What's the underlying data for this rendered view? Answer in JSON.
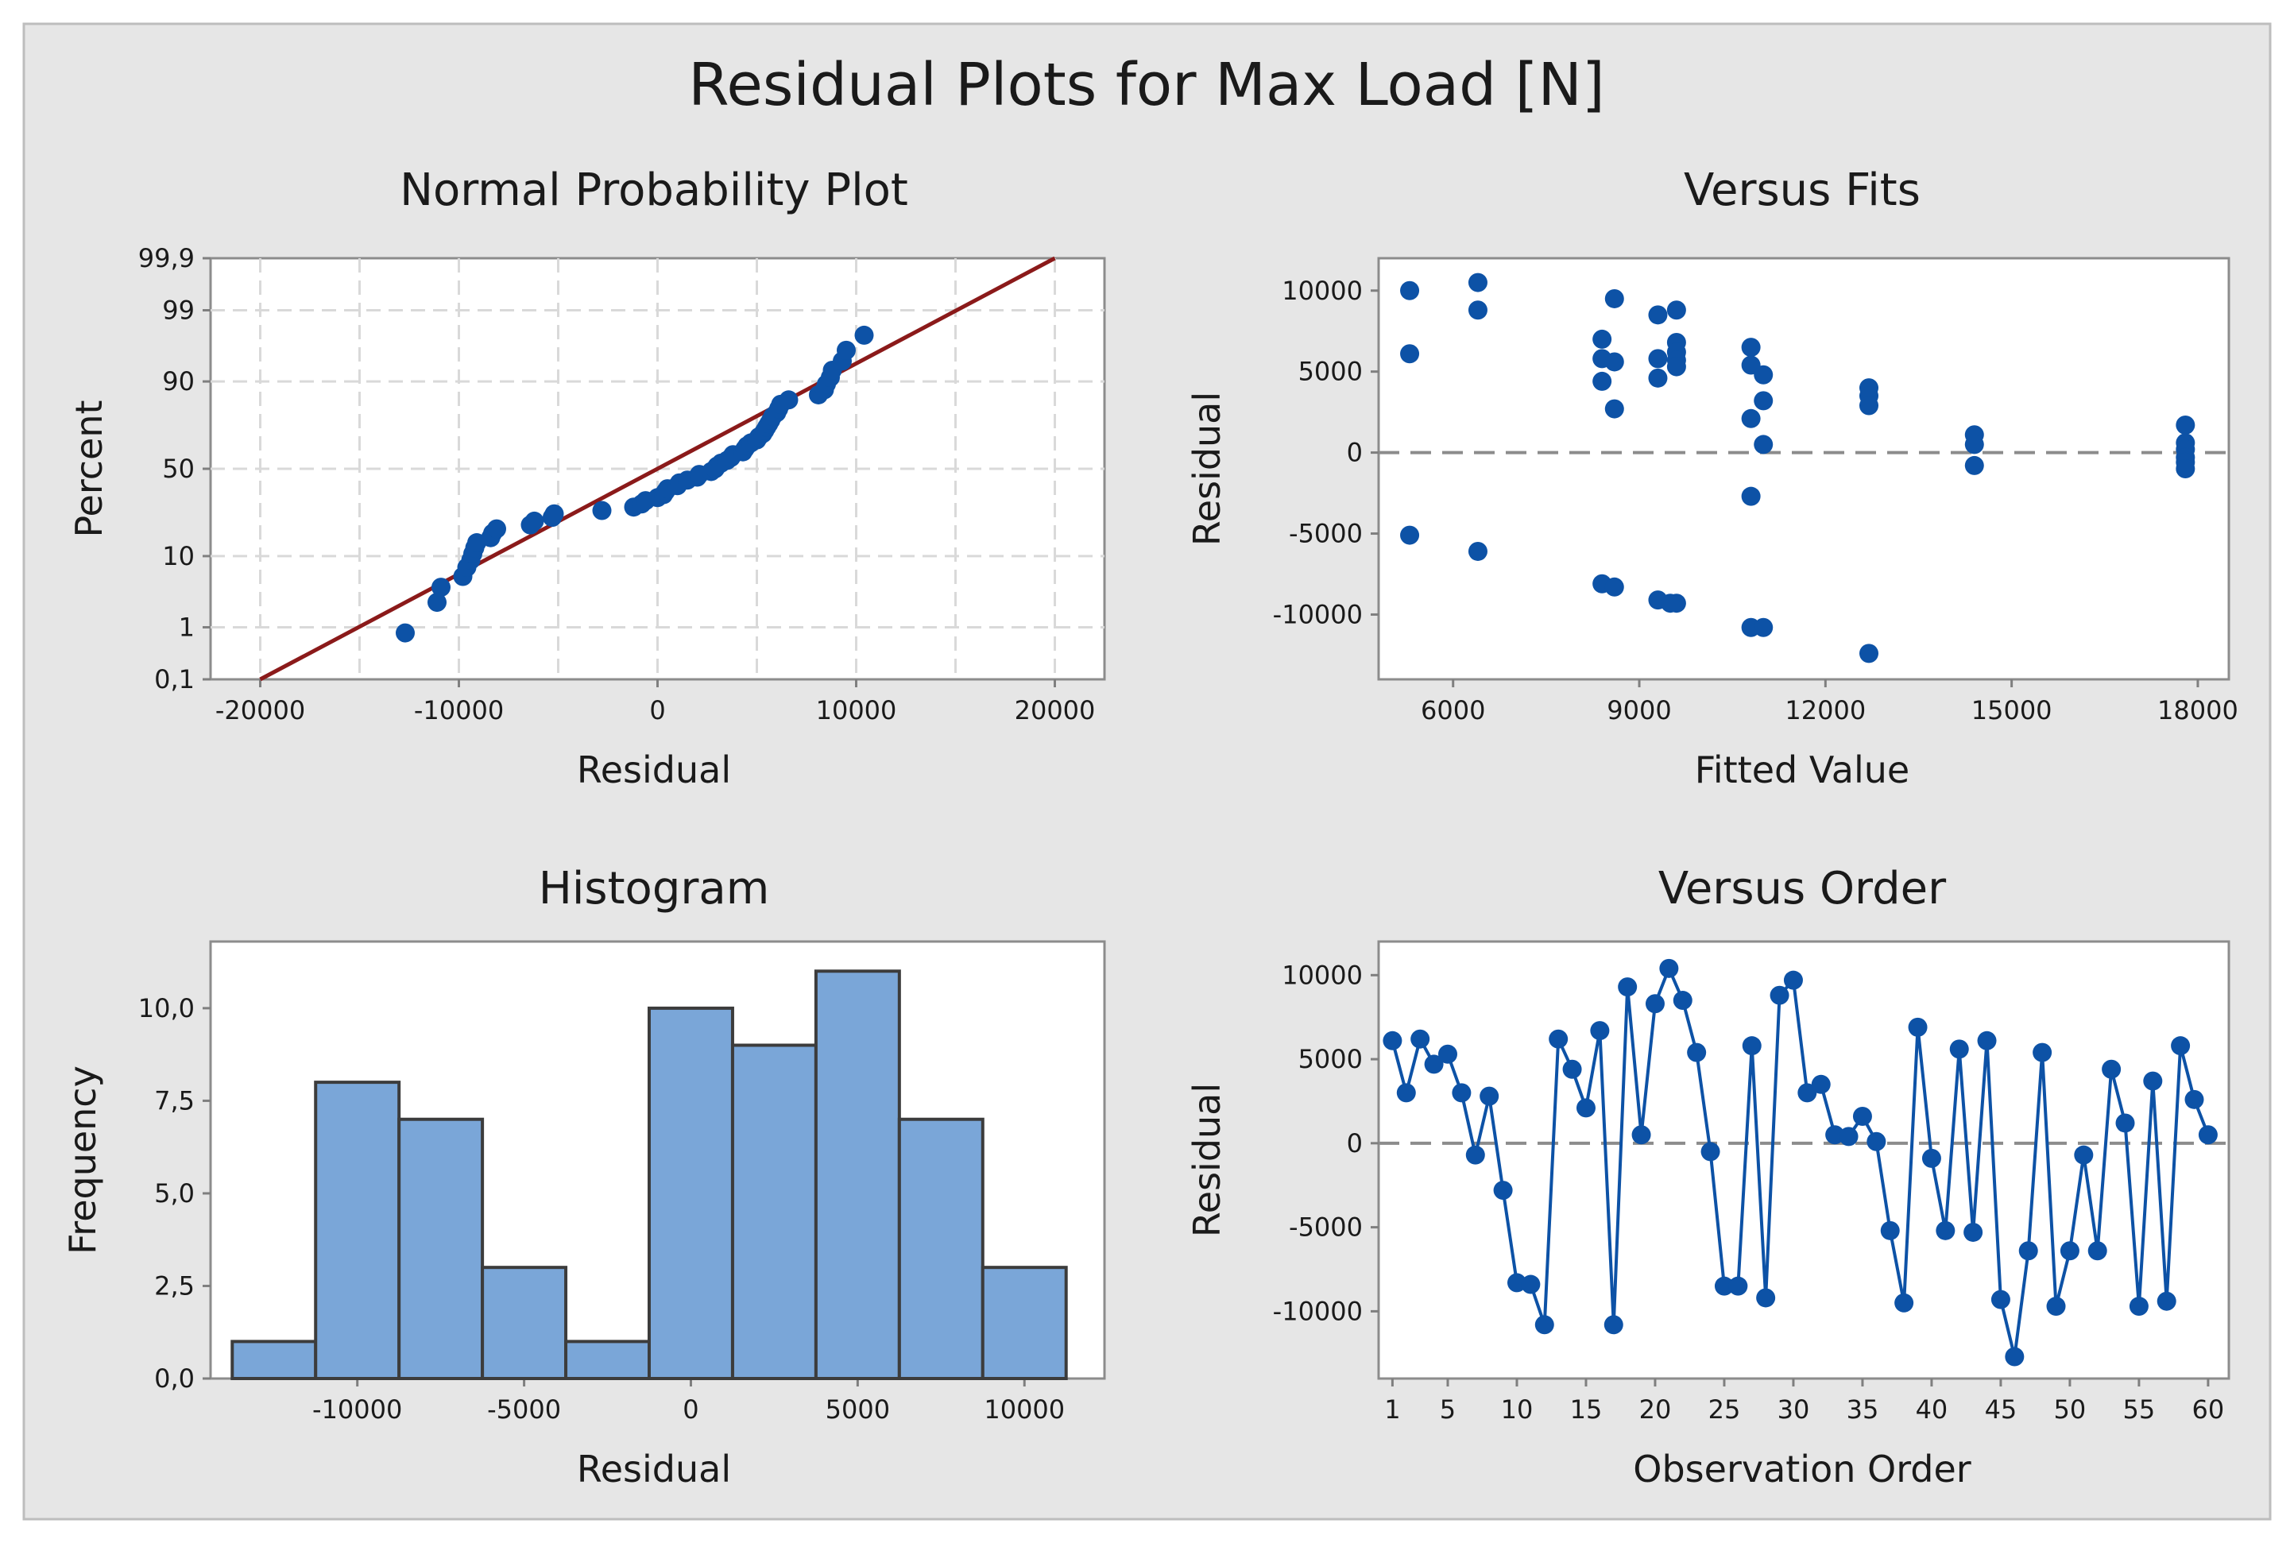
{
  "title": "Residual Plots for Max Load [N]",
  "colors": {
    "background": "#e6e6e6",
    "plot_bg": "#ffffff",
    "point": "#0d52a6",
    "fit_line": "#8b1a1a",
    "bar_fill": "#7aa6d8",
    "bar_edge": "#3c3c3c",
    "grid": "#d9d9d9",
    "axis": "#7f7f7f",
    "zero_line": "#8c8c8c"
  },
  "chart_data": [
    {
      "type": "scatter",
      "name": "normal-probability",
      "title": "Normal Probability Plot",
      "xlabel": "Residual",
      "ylabel": "Percent",
      "xlim": [
        -22500,
        22500
      ],
      "xticks": [
        -20000,
        -10000,
        0,
        10000,
        20000
      ],
      "xtick_labels": [
        "-20000",
        "-10000",
        "0",
        "10000",
        "20000"
      ],
      "yticks": [
        0.1,
        1,
        10,
        50,
        90,
        99,
        99.9
      ],
      "ytick_labels": [
        "0,1",
        "1",
        "10",
        "50",
        "90",
        "99",
        "99,9"
      ],
      "ylim_percent": [
        0.1,
        99.9
      ],
      "grid": true,
      "fit_line": {
        "x": [
          -20000,
          20000
        ],
        "percent": [
          0.1,
          99.9
        ]
      },
      "points": [
        [
          -12700,
          0.8
        ],
        [
          -11100,
          2.5
        ],
        [
          -10900,
          4.1
        ],
        [
          -9800,
          5.7
        ],
        [
          -9600,
          7.4
        ],
        [
          -9400,
          9.0
        ],
        [
          -9300,
          10.6
        ],
        [
          -9200,
          12.3
        ],
        [
          -9100,
          13.9
        ],
        [
          -8400,
          15.6
        ],
        [
          -8300,
          17.2
        ],
        [
          -8100,
          18.9
        ],
        [
          -6400,
          20.5
        ],
        [
          -6200,
          22.1
        ],
        [
          -5300,
          23.8
        ],
        [
          -5200,
          25.4
        ],
        [
          -2800,
          27.0
        ],
        [
          -1200,
          28.7
        ],
        [
          -800,
          30.3
        ],
        [
          -600,
          32.0
        ],
        [
          0,
          33.6
        ],
        [
          300,
          35.2
        ],
        [
          400,
          36.9
        ],
        [
          500,
          38.5
        ],
        [
          1000,
          40.2
        ],
        [
          1100,
          41.8
        ],
        [
          1500,
          43.4
        ],
        [
          2000,
          45.1
        ],
        [
          2100,
          46.7
        ],
        [
          2700,
          48.4
        ],
        [
          2900,
          50.0
        ],
        [
          3000,
          51.6
        ],
        [
          3200,
          53.3
        ],
        [
          3500,
          54.9
        ],
        [
          3700,
          56.6
        ],
        [
          3800,
          58.2
        ],
        [
          4300,
          59.8
        ],
        [
          4400,
          61.5
        ],
        [
          4500,
          63.1
        ],
        [
          4700,
          64.8
        ],
        [
          5000,
          66.4
        ],
        [
          5100,
          68.0
        ],
        [
          5300,
          69.7
        ],
        [
          5400,
          71.3
        ],
        [
          5500,
          73.0
        ],
        [
          5600,
          74.6
        ],
        [
          5700,
          76.2
        ],
        [
          5800,
          77.9
        ],
        [
          6000,
          79.5
        ],
        [
          6100,
          81.1
        ],
        [
          6200,
          82.8
        ],
        [
          6600,
          84.4
        ],
        [
          8100,
          86.1
        ],
        [
          8400,
          87.7
        ],
        [
          8500,
          89.3
        ],
        [
          8700,
          91.0
        ],
        [
          8800,
          92.6
        ],
        [
          9300,
          94.3
        ],
        [
          9500,
          95.9
        ],
        [
          10400,
          97.5
        ]
      ]
    },
    {
      "type": "scatter",
      "name": "versus-fits",
      "title": "Versus Fits",
      "xlabel": "Fitted Value",
      "ylabel": "Residual",
      "xlim": [
        4800,
        18500
      ],
      "ylim": [
        -14000,
        12000
      ],
      "xticks": [
        6000,
        9000,
        12000,
        15000,
        18000
      ],
      "yticks": [
        -10000,
        -5000,
        0,
        5000,
        10000
      ],
      "ytick_labels": [
        "-10000",
        "-5000",
        "0",
        "5000",
        "10000"
      ],
      "reference_line": 0,
      "points": [
        [
          5300,
          10000
        ],
        [
          5300,
          6100
        ],
        [
          5300,
          -5100
        ],
        [
          6400,
          10500
        ],
        [
          6400,
          8800
        ],
        [
          6400,
          -6100
        ],
        [
          8400,
          7000
        ],
        [
          8400,
          5800
        ],
        [
          8400,
          4400
        ],
        [
          8400,
          -8100
        ],
        [
          8600,
          9500
        ],
        [
          8600,
          5600
        ],
        [
          8600,
          2700
        ],
        [
          8600,
          -8300
        ],
        [
          9300,
          8500
        ],
        [
          9300,
          5800
        ],
        [
          9300,
          4600
        ],
        [
          9300,
          -9100
        ],
        [
          9600,
          8800
        ],
        [
          9600,
          6800
        ],
        [
          9600,
          6200
        ],
        [
          9600,
          5700
        ],
        [
          9600,
          5300
        ],
        [
          9600,
          -9300
        ],
        [
          9500,
          -9300
        ],
        [
          10800,
          6500
        ],
        [
          10800,
          5400
        ],
        [
          10800,
          2100
        ],
        [
          10800,
          -2700
        ],
        [
          10800,
          -10800
        ],
        [
          11000,
          4800
        ],
        [
          11000,
          3200
        ],
        [
          11000,
          500
        ],
        [
          11000,
          -10800
        ],
        [
          12700,
          4000
        ],
        [
          12700,
          3500
        ],
        [
          12700,
          2900
        ],
        [
          12700,
          -12400
        ],
        [
          14400,
          1100
        ],
        [
          14400,
          500
        ],
        [
          14400,
          -800
        ],
        [
          17800,
          1700
        ],
        [
          17800,
          600
        ],
        [
          17800,
          200
        ],
        [
          17800,
          -300
        ],
        [
          17800,
          -600
        ],
        [
          17800,
          -1000
        ]
      ]
    },
    {
      "type": "bar",
      "name": "histogram",
      "title": "Histogram",
      "xlabel": "Residual",
      "ylabel": "Frequency",
      "bin_width": 2500,
      "bin_centers": [
        -12500,
        -10000,
        -7500,
        -5000,
        -2500,
        0,
        2500,
        5000,
        7500,
        10000
      ],
      "values": [
        1,
        8,
        7,
        3,
        1,
        10,
        9,
        11,
        7,
        3
      ],
      "xlim": [
        -14400,
        12400
      ],
      "ylim": [
        0,
        11.8
      ],
      "xticks": [
        -10000,
        -5000,
        0,
        5000,
        10000
      ],
      "xtick_labels": [
        "-10000",
        "-5000",
        "0",
        "5000",
        "10000"
      ],
      "yticks": [
        0,
        2.5,
        5,
        7.5,
        10
      ],
      "ytick_labels": [
        "0,0",
        "2,5",
        "5,0",
        "7,5",
        "10,0"
      ]
    },
    {
      "type": "line",
      "name": "versus-order",
      "title": "Versus Order",
      "xlabel": "Observation Order",
      "ylabel": "Residual",
      "xlim": [
        0,
        61.5
      ],
      "ylim": [
        -14000,
        12000
      ],
      "xticks": [
        1,
        5,
        10,
        15,
        20,
        25,
        30,
        35,
        40,
        45,
        50,
        55,
        60
      ],
      "yticks": [
        -10000,
        -5000,
        0,
        5000,
        10000
      ],
      "ytick_labels": [
        "-10000",
        "-5000",
        "0",
        "5000",
        "10000"
      ],
      "reference_line": 0,
      "x": [
        1,
        2,
        3,
        4,
        5,
        6,
        7,
        8,
        9,
        10,
        11,
        12,
        13,
        14,
        15,
        16,
        17,
        18,
        19,
        20,
        21,
        22,
        23,
        24,
        25,
        26,
        27,
        28,
        29,
        30,
        31,
        32,
        33,
        34,
        35,
        36,
        37,
        38,
        39,
        40,
        41,
        42,
        43,
        44,
        45,
        46,
        47,
        48,
        49,
        50,
        51,
        52,
        53,
        54,
        55,
        56,
        57,
        58,
        59,
        60
      ],
      "values": [
        6100,
        3000,
        6200,
        4700,
        5300,
        3000,
        -700,
        2800,
        -2800,
        -8300,
        -8400,
        -10800,
        6200,
        4400,
        2100,
        6700,
        -10800,
        9300,
        500,
        8300,
        10400,
        8500,
        5400,
        -500,
        -8500,
        -8500,
        5800,
        -9200,
        8800,
        9700,
        3000,
        3500,
        500,
        400,
        1600,
        100,
        -5200,
        -9500,
        6900,
        -900,
        -5200,
        5600,
        -5300,
        6100,
        -9300,
        -12700,
        -6400,
        5400,
        -9700,
        -6400,
        -700,
        -6400,
        4400,
        1200,
        -9700,
        3700,
        -9400,
        5800,
        2600,
        500
      ]
    }
  ]
}
